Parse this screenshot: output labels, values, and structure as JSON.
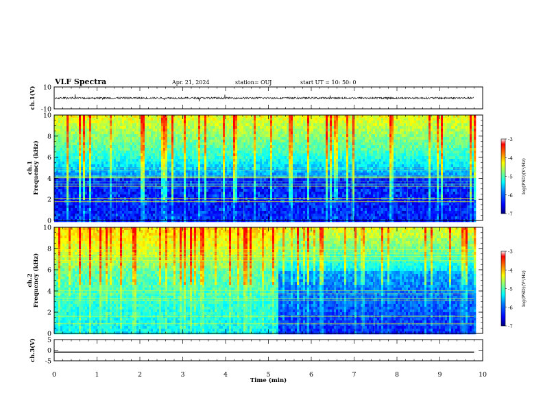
{
  "header": {
    "title": "VLF Spectra",
    "date": "Apr. 21, 2024",
    "station": "station= OUJ",
    "start": "start  UT  =   10: 50: 0"
  },
  "colors": {
    "colormap": [
      "#000080",
      "#0000ff",
      "#0080ff",
      "#00ffff",
      "#80ff80",
      "#ffff00",
      "#ff8000",
      "#ff0000",
      "#ffffff"
    ]
  },
  "chart_data": [
    {
      "type": "line",
      "panel": "ch1 waveform",
      "ylabel": "ch.1(V)",
      "ylim": [
        -10,
        10
      ],
      "yticks": [
        "10",
        "-10"
      ],
      "series": [
        {
          "values_approx_level": -0.1
        }
      ]
    },
    {
      "type": "heatmap",
      "panel": "ch1 spectrogram",
      "ylabel": "ch.1\nFrequency (kHz)",
      "ylim": [
        0,
        10
      ],
      "yticks": [
        "0",
        "2",
        "4",
        "6",
        "8",
        "10"
      ],
      "colorbar": {
        "label": "log(PSD)(V²/Hz)",
        "ticks": [
          "-3",
          "-4",
          "-5",
          "-6",
          "-7"
        ],
        "range": [
          -7,
          -3
        ]
      }
    },
    {
      "type": "heatmap",
      "panel": "ch2 spectrogram",
      "ylabel": "ch.2\nFrequency (kHz)",
      "ylim": [
        0,
        10
      ],
      "yticks": [
        "0",
        "2",
        "4",
        "6",
        "8",
        "10"
      ],
      "transition_minute": 5.2,
      "colorbar": {
        "label": "log(PSD)(V²/Hz)",
        "ticks": [
          "-3",
          "-4",
          "-5",
          "-6",
          "-7"
        ],
        "range": [
          -7,
          -3
        ]
      }
    },
    {
      "type": "line",
      "panel": "ch3 waveform",
      "ylabel": "ch.3(V)",
      "ylim": [
        -5,
        5
      ],
      "yticks": [
        "5",
        "0",
        "-5"
      ],
      "series": [
        {
          "values_approx_level": -0.9
        }
      ]
    }
  ],
  "xaxis": {
    "label": "Time  (min)",
    "range": [
      0,
      10
    ],
    "ticks": [
      "0",
      "1",
      "2",
      "3",
      "4",
      "5",
      "6",
      "7",
      "8",
      "9",
      "10"
    ],
    "data_end_minute": 9.8
  }
}
